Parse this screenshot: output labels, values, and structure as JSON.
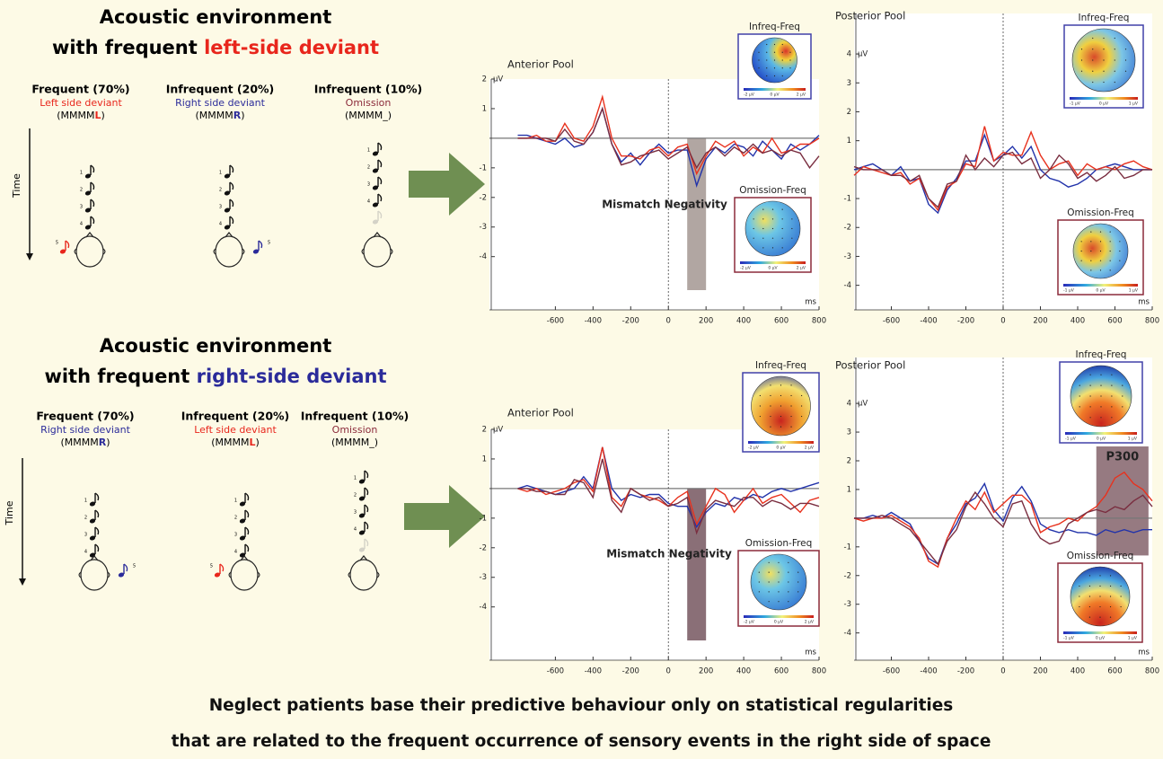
{
  "environments": [
    {
      "title": "Acoustic environment",
      "subtitle": "with frequent ",
      "highlight": "left-side deviant",
      "time_label": "Time",
      "conditions": [
        {
          "header": "Frequent (70%)",
          "description": "Left side deviant",
          "sequence": [
            "(MMMM",
            "L",
            ")"
          ]
        },
        {
          "header": "Infrequent (20%)",
          "description": "Right side deviant",
          "sequence": [
            "(MMMM",
            "R",
            ")"
          ]
        },
        {
          "header": "Infrequent (10%)",
          "description": "Omission",
          "sequence": [
            "(MMMM_)"
          ]
        }
      ]
    },
    {
      "title": "Acoustic environment",
      "subtitle": "with frequent ",
      "highlight": "right-side deviant",
      "time_label": "Time",
      "conditions": [
        {
          "header": "Frequent (70%)",
          "description": "Right side deviant",
          "sequence": [
            "(MMMM",
            "R",
            ")"
          ]
        },
        {
          "header": "Infrequent (20%)",
          "description": "Left side deviant",
          "sequence": [
            "(MMMM",
            "L",
            ")"
          ]
        },
        {
          "header": "Infrequent (10%)",
          "description": "Omission",
          "sequence": [
            "(MMMM_)"
          ]
        }
      ]
    }
  ],
  "note_numbers": [
    1,
    2,
    3,
    4,
    5
  ],
  "chart_data": [
    {
      "type": "line",
      "title": "Anterior Pool",
      "y_unit": "µV",
      "x_unit": "ms",
      "xlim": [
        -950,
        800
      ],
      "xticks": [
        -600,
        -400,
        -200,
        0,
        200,
        400,
        600,
        800
      ],
      "ylim": [
        -5.8,
        2
      ],
      "yticks": [
        2,
        1,
        -1,
        -2,
        -3,
        -4
      ],
      "x": [
        -800,
        -750,
        -700,
        -650,
        -600,
        -550,
        -500,
        -450,
        -400,
        -350,
        -300,
        -250,
        -200,
        -150,
        -100,
        -50,
        0,
        50,
        100,
        150,
        200,
        250,
        300,
        350,
        400,
        450,
        500,
        550,
        600,
        650,
        700,
        750,
        800
      ],
      "series": [
        {
          "color": "#2233aa",
          "values": [
            0.1,
            0.1,
            0,
            -0.1,
            -0.2,
            0,
            -0.3,
            -0.2,
            0.2,
            1.0,
            -0.2,
            -0.8,
            -0.5,
            -0.9,
            -0.5,
            -0.2,
            -0.5,
            -0.4,
            -0.4,
            -1.6,
            -0.7,
            -0.3,
            -0.5,
            -0.2,
            -0.3,
            -0.6,
            -0.1,
            -0.4,
            -0.7,
            -0.2,
            -0.4,
            -0.2,
            0.1
          ]
        },
        {
          "color": "#e8321e",
          "values": [
            0,
            0,
            0.1,
            -0.1,
            -0.1,
            0.5,
            0,
            -0.1,
            0.4,
            1.4,
            0,
            -0.6,
            -0.6,
            -0.7,
            -0.4,
            -0.3,
            -0.6,
            -0.3,
            -0.2,
            -1.2,
            -0.6,
            -0.1,
            -0.3,
            -0.1,
            -0.6,
            -0.3,
            -0.5,
            0,
            -0.5,
            -0.4,
            -0.2,
            -0.2,
            0
          ]
        },
        {
          "color": "#7a2e40",
          "values": [
            0,
            0,
            0,
            0,
            -0.1,
            0.3,
            -0.1,
            -0.2,
            0.2,
            1.0,
            -0.2,
            -0.9,
            -0.8,
            -0.6,
            -0.5,
            -0.4,
            -0.7,
            -0.5,
            -0.3,
            -1.0,
            -0.5,
            -0.3,
            -0.6,
            -0.3,
            -0.5,
            -0.2,
            -0.5,
            -0.4,
            -0.6,
            -0.4,
            -0.5,
            -1.0,
            -0.6
          ]
        }
      ],
      "band": {
        "label": "Mismatch Negativity",
        "x": [
          100,
          200
        ],
        "color": "#a89c98"
      },
      "insets": [
        {
          "label": "Infreq-Freq",
          "scale": [
            "-2 µV",
            "0 µV",
            "2 µV"
          ]
        },
        {
          "label": "Omission-Freq",
          "scale": [
            "-2 µV",
            "0 µV",
            "2 µV"
          ]
        }
      ]
    },
    {
      "type": "line",
      "title": "Posterior Pool",
      "y_unit": "µV",
      "x_unit": "ms",
      "xlim": [
        -800,
        800
      ],
      "xticks": [
        -600,
        -400,
        -200,
        0,
        200,
        400,
        600,
        800
      ],
      "ylim": [
        -4.85,
        5.4
      ],
      "yticks": [
        4,
        3,
        2,
        1,
        -1,
        -2,
        -3,
        -4
      ],
      "x": [
        -800,
        -750,
        -700,
        -650,
        -600,
        -550,
        -500,
        -450,
        -400,
        -350,
        -300,
        -250,
        -200,
        -150,
        -100,
        -50,
        0,
        50,
        100,
        150,
        200,
        250,
        300,
        350,
        400,
        450,
        500,
        550,
        600,
        650,
        700,
        750,
        800
      ],
      "series": [
        {
          "color": "#2233aa",
          "values": [
            0,
            0.1,
            0.2,
            0,
            -0.2,
            0.1,
            -0.4,
            -0.3,
            -1.2,
            -1.5,
            -0.7,
            -0.3,
            0.3,
            0.3,
            1.2,
            0.3,
            0.5,
            0.8,
            0.4,
            0.8,
            0,
            -0.3,
            -0.4,
            -0.6,
            -0.5,
            -0.3,
            0,
            0.1,
            0.2,
            0.1,
            0,
            0,
            0
          ]
        },
        {
          "color": "#e8321e",
          "values": [
            -0.2,
            0.1,
            0,
            -0.1,
            -0.2,
            -0.1,
            -0.5,
            -0.3,
            -1.0,
            -1.4,
            -0.6,
            -0.4,
            0.2,
            0.1,
            1.5,
            0.3,
            0.6,
            0.5,
            0.5,
            1.3,
            0.5,
            0,
            0.2,
            0.3,
            -0.2,
            0.2,
            0,
            0.1,
            0,
            0.2,
            0.3,
            0.1,
            0
          ]
        },
        {
          "color": "#7a2e40",
          "values": [
            0.1,
            0,
            0,
            0,
            -0.2,
            -0.2,
            -0.4,
            -0.2,
            -1.0,
            -1.3,
            -0.5,
            -0.4,
            0.5,
            0,
            0.4,
            0.1,
            0.5,
            0.6,
            0.2,
            0.4,
            -0.3,
            0,
            0.5,
            0.2,
            -0.3,
            -0.1,
            -0.4,
            -0.2,
            0.1,
            -0.3,
            -0.2,
            0,
            0
          ]
        }
      ],
      "insets": [
        {
          "label": "Infreq-Freq",
          "scale": [
            "-1 µV",
            "0 µV",
            "1 µV"
          ]
        },
        {
          "label": "Omission-Freq",
          "scale": [
            "-1 µV",
            "0 µV",
            "1 µV"
          ]
        }
      ]
    },
    {
      "type": "line",
      "title": "Anterior Pool",
      "y_unit": "µV",
      "x_unit": "ms",
      "xlim": [
        -950,
        800
      ],
      "xticks": [
        -600,
        -400,
        -200,
        0,
        200,
        400,
        600,
        800
      ],
      "ylim": [
        -5.8,
        2
      ],
      "yticks": [
        2,
        1,
        -1,
        -2,
        -3,
        -4
      ],
      "x": [
        -800,
        -750,
        -700,
        -650,
        -600,
        -550,
        -500,
        -450,
        -400,
        -350,
        -300,
        -250,
        -200,
        -150,
        -100,
        -50,
        0,
        50,
        100,
        150,
        200,
        250,
        300,
        350,
        400,
        450,
        500,
        550,
        600,
        650,
        700,
        750,
        800
      ],
      "series": [
        {
          "color": "#2233aa",
          "values": [
            0,
            0.1,
            0,
            -0.1,
            -0.2,
            -0.1,
            0,
            0.4,
            0,
            1.4,
            0,
            -0.4,
            -0.2,
            -0.3,
            -0.2,
            -0.2,
            -0.5,
            -0.6,
            -0.6,
            -1.3,
            -0.8,
            -0.5,
            -0.6,
            -0.3,
            -0.4,
            -0.2,
            -0.3,
            -0.1,
            0,
            -0.1,
            0,
            0.1,
            0.2
          ]
        },
        {
          "color": "#e8321e",
          "values": [
            0,
            -0.1,
            0,
            -0.2,
            -0.1,
            0,
            0.2,
            0.3,
            -0.1,
            1.4,
            -0.3,
            -0.6,
            0,
            -0.2,
            -0.3,
            -0.4,
            -0.6,
            -0.3,
            -0.1,
            -1.2,
            -0.6,
            0,
            -0.2,
            -0.8,
            -0.4,
            0,
            -0.5,
            -0.3,
            -0.2,
            -0.5,
            -0.8,
            -0.4,
            -0.3
          ]
        },
        {
          "color": "#7a2e40",
          "values": [
            0,
            0,
            -0.1,
            -0.1,
            -0.2,
            -0.2,
            0.3,
            0.2,
            -0.3,
            1.0,
            -0.4,
            -0.8,
            0,
            -0.2,
            -0.4,
            -0.3,
            -0.6,
            -0.5,
            -0.3,
            -1.5,
            -0.7,
            -0.4,
            -0.5,
            -0.6,
            -0.3,
            -0.3,
            -0.6,
            -0.4,
            -0.5,
            -0.7,
            -0.5,
            -0.5,
            -0.6
          ]
        }
      ],
      "band": {
        "label": "Mismatch Negativity",
        "x": [
          100,
          200
        ],
        "color": "#7d5f68"
      },
      "insets": [
        {
          "label": "Infreq-Freq",
          "scale": [
            "-2 µV",
            "0 µV",
            "2 µV"
          ]
        },
        {
          "label": "Omission-Freq",
          "scale": [
            "-2 µV",
            "0 µV",
            "2 µV"
          ]
        }
      ]
    },
    {
      "type": "line",
      "title": "Posterior Pool",
      "y_unit": "µV",
      "x_unit": "ms",
      "xlim": [
        -800,
        800
      ],
      "xticks": [
        -600,
        -400,
        -200,
        0,
        200,
        400,
        600,
        800
      ],
      "ylim": [
        -4.95,
        5.6
      ],
      "yticks": [
        4,
        3,
        2,
        1,
        -1,
        -2,
        -3,
        -4
      ],
      "x": [
        -800,
        -750,
        -700,
        -650,
        -600,
        -550,
        -500,
        -450,
        -400,
        -350,
        -300,
        -250,
        -200,
        -150,
        -100,
        -50,
        0,
        50,
        100,
        150,
        200,
        250,
        300,
        350,
        400,
        450,
        500,
        550,
        600,
        650,
        700,
        750,
        800
      ],
      "series": [
        {
          "color": "#2233aa",
          "values": [
            0,
            0,
            0.1,
            0,
            0.2,
            0,
            -0.2,
            -0.8,
            -1.4,
            -1.6,
            -0.7,
            -0.2,
            0.5,
            0.7,
            1.2,
            0.3,
            -0.1,
            0.7,
            1.1,
            0.6,
            -0.2,
            -0.4,
            -0.5,
            -0.4,
            -0.5,
            -0.5,
            -0.6,
            -0.4,
            -0.5,
            -0.4,
            -0.5,
            -0.4,
            -0.4
          ]
        },
        {
          "color": "#e8321e",
          "values": [
            0,
            -0.1,
            0,
            0,
            0.1,
            -0.1,
            -0.3,
            -0.7,
            -1.5,
            -1.7,
            -0.7,
            0,
            0.6,
            0.3,
            0.9,
            0.2,
            0.5,
            0.8,
            0.8,
            0.5,
            -0.5,
            -0.3,
            -0.2,
            0,
            -0.1,
            0.2,
            0.4,
            0.8,
            1.4,
            1.6,
            1.2,
            1.0,
            0.6
          ]
        },
        {
          "color": "#7a2e40",
          "values": [
            0,
            0,
            0,
            0.1,
            0,
            -0.2,
            -0.4,
            -0.8,
            -1.2,
            -1.6,
            -0.8,
            -0.4,
            0.4,
            0.9,
            0.5,
            0,
            -0.3,
            0.5,
            0.6,
            -0.2,
            -0.7,
            -0.9,
            -0.8,
            -0.2,
            0,
            0.2,
            0.3,
            0.2,
            0.4,
            0.3,
            0.6,
            0.8,
            0.4
          ]
        }
      ],
      "band": {
        "label": "P300",
        "x": [
          500,
          780
        ],
        "y": [
          -1.3,
          2.5
        ],
        "color": "#8b6b73"
      },
      "insets": [
        {
          "label": "Infreq-Freq",
          "scale": [
            "-1 µV",
            "0 µV",
            "1 µV"
          ]
        },
        {
          "label": "Omission-Freq",
          "scale": [
            "-1 µV",
            "0 µV",
            "1 µV"
          ]
        }
      ]
    }
  ],
  "conclusion": [
    "Neglect patients base their predictive behaviour only on statistical regularities",
    "that are related to the frequent occurrence of sensory events in the right side of space"
  ]
}
